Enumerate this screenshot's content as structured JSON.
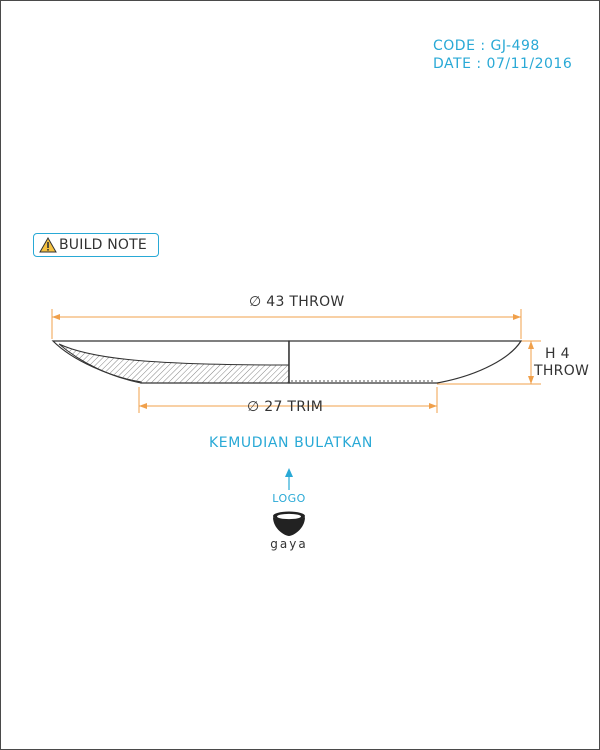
{
  "meta": {
    "code": "CODE : GJ-498",
    "date": "DATE : 07/11/2016"
  },
  "note": {
    "label": "BUILD NOTE",
    "icon": "warning-triangle-icon"
  },
  "dimensions": {
    "diameter_top": "∅ 43 THROW",
    "diameter_bottom": "∅ 27 TRIM",
    "height_line1": "H 4",
    "height_line2": "THROW"
  },
  "instruction": "KEMUDIAN BULATKAN",
  "logo": {
    "label": "LOGO",
    "brand": "gaya"
  },
  "colors": {
    "dimension": "#f0a04b",
    "annotation": "#29a9d6",
    "outline": "#333333"
  }
}
